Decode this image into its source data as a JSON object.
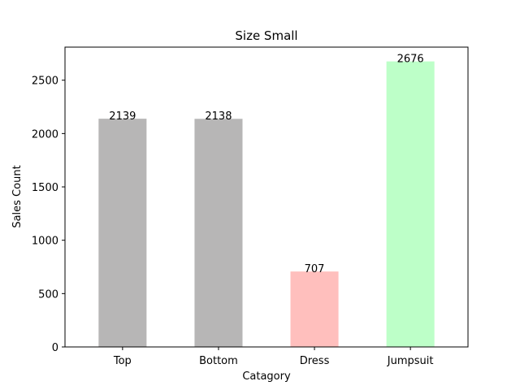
{
  "chart_data": {
    "type": "bar",
    "title": "Size Small",
    "xlabel": "Catagory",
    "ylabel": "Sales Count",
    "categories": [
      "Top",
      "Bottom",
      "Dress",
      "Jumpsuit"
    ],
    "values": [
      2139,
      2138,
      707,
      2676
    ],
    "value_labels": [
      "2139",
      "2138",
      "707",
      "2676"
    ],
    "colors": [
      "#b7b6b6",
      "#b7b6b6",
      "#ffbfbd",
      "#bdffc8"
    ],
    "ylim": [
      0,
      2810
    ],
    "yticks": [
      0,
      500,
      1000,
      1500,
      2000,
      2500
    ],
    "ytick_labels": [
      "0",
      "500",
      "1000",
      "1500",
      "2000",
      "2500"
    ],
    "grid": false,
    "legend": "none"
  }
}
